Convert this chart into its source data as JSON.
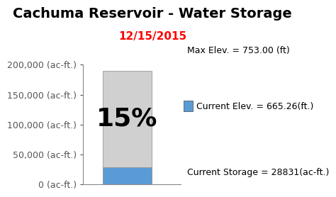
{
  "title": "Cachuma Reservoir - Water Storage",
  "subtitle": "12/15/2015",
  "subtitle_color": "#FF0000",
  "max_storage": 190000,
  "current_storage": 28831,
  "percent_label": "15%",
  "current_color": "#5b9bd5",
  "empty_color": "#d0d0d0",
  "ylim": [
    0,
    200000
  ],
  "yticks": [
    0,
    50000,
    100000,
    150000,
    200000
  ],
  "ytick_labels": [
    "0 (ac-ft.)",
    "50,000 (ac-ft.)",
    "100,000 (ac-ft.)",
    "150,000 (ac-ft.)",
    "200,000 (ac-ft.)"
  ],
  "annotation_max_elev": "Max Elev. = 753.00 (ft)",
  "annotation_current_elev": "Current Elev. = 665.26(ft.)",
  "annotation_current_storage": "Current Storage = 28831(ac-ft.)",
  "bg_color": "#ffffff",
  "title_fontsize": 14,
  "subtitle_fontsize": 11,
  "percent_fontsize": 26,
  "annotation_fontsize": 9,
  "ytick_fontsize": 9
}
